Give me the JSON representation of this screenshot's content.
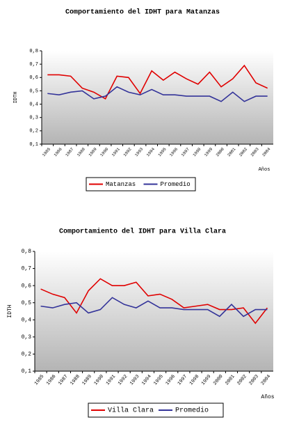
{
  "chart_data": [
    {
      "type": "line",
      "title": "Comportamiento del IDHT para Matanzas",
      "y_label": "IDTH",
      "x_label": "Años",
      "categories": [
        "1985",
        "1986",
        "1987",
        "1988",
        "1989",
        "1990",
        "1991",
        "1992",
        "1993",
        "1994",
        "1995",
        "1996",
        "1997",
        "1998",
        "1999",
        "2000",
        "2001",
        "2002",
        "2003",
        "2004"
      ],
      "ylim": [
        0.1,
        0.8
      ],
      "yticks": [
        {
          "value": 0.1,
          "label": "0,1"
        },
        {
          "value": 0.2,
          "label": "0,2"
        },
        {
          "value": 0.3,
          "label": "0,3"
        },
        {
          "value": 0.4,
          "label": "0,4"
        },
        {
          "value": 0.5,
          "label": "0,5"
        },
        {
          "value": 0.6,
          "label": "0,6"
        },
        {
          "value": 0.7,
          "label": "0,7"
        },
        {
          "value": 0.8,
          "label": "0,8"
        }
      ],
      "series": [
        {
          "name": "Matanzas",
          "color": "#e00000",
          "values": [
            0.62,
            0.62,
            0.61,
            0.52,
            0.49,
            0.44,
            0.61,
            0.6,
            0.48,
            0.65,
            0.58,
            0.64,
            0.59,
            0.55,
            0.64,
            0.53,
            0.59,
            0.69,
            0.56,
            0.52
          ]
        },
        {
          "name": "Promedio",
          "color": "#333399",
          "values": [
            0.48,
            0.47,
            0.49,
            0.5,
            0.44,
            0.46,
            0.53,
            0.49,
            0.47,
            0.51,
            0.47,
            0.47,
            0.46,
            0.46,
            0.46,
            0.42,
            0.49,
            0.42,
            0.46,
            0.46
          ]
        }
      ]
    },
    {
      "type": "line",
      "title": "Comportamiento del IDHT para Villa Clara",
      "y_label": "IDTH",
      "x_label": "Años",
      "categories": [
        "1985",
        "1986",
        "1987",
        "1988",
        "1989",
        "1990",
        "1991",
        "1992",
        "1993",
        "1994",
        "1995",
        "1996",
        "1997",
        "1998",
        "1999",
        "2000",
        "2001",
        "2002",
        "2003",
        "2004"
      ],
      "ylim": [
        0.1,
        0.8
      ],
      "yticks": [
        {
          "value": 0.1,
          "label": "0,1"
        },
        {
          "value": 0.2,
          "label": "0,2"
        },
        {
          "value": 0.3,
          "label": "0,3"
        },
        {
          "value": 0.4,
          "label": "0,4"
        },
        {
          "value": 0.5,
          "label": "0,5"
        },
        {
          "value": 0.6,
          "label": "0,6"
        },
        {
          "value": 0.7,
          "label": "0,7"
        },
        {
          "value": 0.8,
          "label": "0,8"
        }
      ],
      "series": [
        {
          "name": "Villa Clara",
          "color": "#e00000",
          "values": [
            0.58,
            0.55,
            0.53,
            0.44,
            0.57,
            0.64,
            0.6,
            0.6,
            0.62,
            0.54,
            0.55,
            0.52,
            0.47,
            0.48,
            0.49,
            0.46,
            0.46,
            0.47,
            0.38,
            0.47
          ]
        },
        {
          "name": "Promedio",
          "color": "#333399",
          "values": [
            0.48,
            0.47,
            0.49,
            0.5,
            0.44,
            0.46,
            0.53,
            0.49,
            0.47,
            0.51,
            0.47,
            0.47,
            0.46,
            0.46,
            0.46,
            0.42,
            0.49,
            0.42,
            0.46,
            0.46
          ]
        }
      ]
    }
  ]
}
